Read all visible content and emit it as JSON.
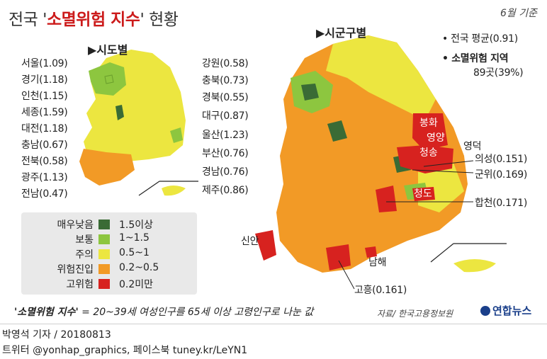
{
  "title": {
    "prefix": "전국 '",
    "emphasis": "소멸위험 지수",
    "suffix": "' 현황"
  },
  "month_note": "6월 기준",
  "province_header": "▶시도별",
  "city_header": "▶시군구별",
  "provinces_left": [
    {
      "name": "서울(1.09)"
    },
    {
      "name": "경기(1.18)"
    },
    {
      "name": "인천(1.15)"
    },
    {
      "name": "세종(1.59)"
    },
    {
      "name": "대전(1.18)"
    },
    {
      "name": "충남(0.67)"
    },
    {
      "name": "전북(0.58)"
    },
    {
      "name": "광주(1.13)"
    },
    {
      "name": "전남(0.47)"
    }
  ],
  "provinces_right": [
    {
      "name": "강원(0.58)"
    },
    {
      "name": "충북(0.73)"
    },
    {
      "name": "경북(0.55)"
    },
    {
      "name": "대구(0.87)"
    },
    {
      "name": "울산(1.23)"
    },
    {
      "name": "부산(0.76)"
    },
    {
      "name": "경남(0.76)"
    },
    {
      "name": "제주(0.86)"
    }
  ],
  "national_avg": "• 전국 평균(0.91)",
  "risk_title": "• 소멸위험 지역",
  "risk_count": "89곳(39%)",
  "map_labels": {
    "bonghwa": "봉화",
    "yeongyang": "영양",
    "cheongsong": "청송",
    "yeongdeok": "영덕",
    "uiseong": "의성(0.151)",
    "gunwi": "군위(0.169)",
    "cheongdo": "청도",
    "hapcheon": "합천(0.171)",
    "sinan": "신안",
    "namhae": "남해",
    "goheung": "고흥(0.161)"
  },
  "legend": [
    {
      "name": "매우낮음",
      "range": "1.5이상",
      "color": "#3a6b35"
    },
    {
      "name": "보통",
      "range": "1~1.5",
      "color": "#8dc63f"
    },
    {
      "name": "주의",
      "range": "0.5~1",
      "color": "#ece640"
    },
    {
      "name": "위험진입",
      "range": "0.2~0.5",
      "color": "#f29a26"
    },
    {
      "name": "고위험",
      "range": "0.2미만",
      "color": "#d7221f"
    }
  ],
  "definition": {
    "term": "'소멸위험 지수'",
    "rest": " = 20~39세 여성인구를 65세 이상 고령인구로 나눈 값"
  },
  "source": "자료/ 한국고용정보원",
  "brand": "연합뉴스",
  "credit": "박영석 기자 / 20180813",
  "social": "트위터 @yonhap_graphics, 페이스북 tuney.kr/LeYN1"
}
